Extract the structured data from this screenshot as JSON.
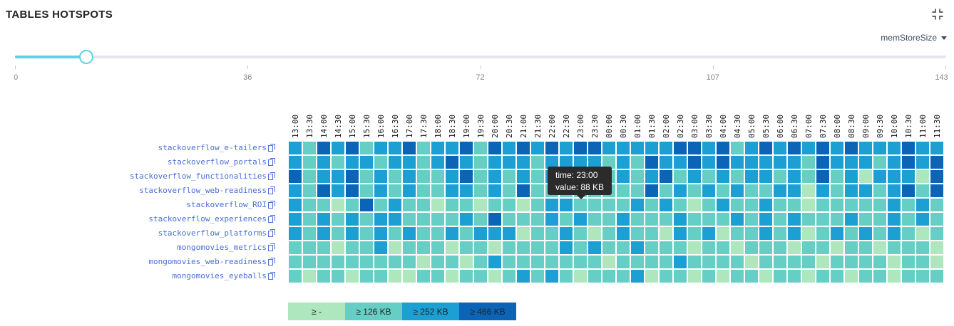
{
  "header": {
    "title": "TABLES HOTSPOTS",
    "collapse_icon": "collapse-icon"
  },
  "metric_select": {
    "value": "memStoreSize"
  },
  "slider": {
    "min": 0,
    "max": 143,
    "value": 11,
    "labels": [
      "0",
      "36",
      "72",
      "107",
      "143"
    ],
    "accent_color": "#5cd3e0"
  },
  "heatmap": {
    "time_labels": [
      "13:00",
      "13:30",
      "14:00",
      "14:30",
      "15:00",
      "15:30",
      "16:00",
      "16:30",
      "17:00",
      "17:30",
      "18:00",
      "18:30",
      "19:00",
      "19:30",
      "20:00",
      "20:30",
      "21:00",
      "21:30",
      "22:00",
      "22:30",
      "23:00",
      "23:30",
      "00:00",
      "00:30",
      "01:00",
      "01:30",
      "02:00",
      "02:30",
      "03:00",
      "03:30",
      "04:00",
      "04:30",
      "05:00",
      "05:30",
      "06:00",
      "06:30",
      "07:00",
      "07:30",
      "08:00",
      "08:30",
      "09:00",
      "09:30",
      "10:00",
      "10:30",
      "11:00",
      "11:30"
    ],
    "table_names": [
      "stackoverflow_e-tailers",
      "stackoverflow_portals",
      "stackoverflow_functionalities",
      "stackoverflow_web-readiness",
      "stackoverflow_ROI",
      "stackoverflow_experiences",
      "stackoverflow_platforms",
      "mongomovies_metrics",
      "mongomovies_web-readiness",
      "mongomovies_eyeballs"
    ],
    "level_colors": [
      "#aee6bd",
      "#66cfc5",
      "#1ca0d4",
      "#0b64b6"
    ],
    "levels": [
      [
        2,
        1,
        3,
        2,
        3,
        1,
        2,
        2,
        3,
        1,
        2,
        2,
        3,
        1,
        3,
        2,
        3,
        2,
        3,
        2,
        3,
        3,
        2,
        2,
        2,
        2,
        2,
        3,
        3,
        2,
        3,
        1,
        2,
        3,
        2,
        3,
        2,
        3,
        2,
        3,
        2,
        2,
        2,
        3,
        2,
        2
      ],
      [
        2,
        1,
        2,
        1,
        2,
        2,
        1,
        2,
        2,
        1,
        2,
        3,
        2,
        1,
        2,
        2,
        2,
        1,
        2,
        2,
        2,
        2,
        1,
        2,
        1,
        3,
        2,
        2,
        3,
        2,
        3,
        2,
        2,
        2,
        2,
        2,
        1,
        3,
        2,
        2,
        2,
        1,
        2,
        3,
        2,
        3
      ],
      [
        3,
        1,
        2,
        2,
        3,
        1,
        2,
        1,
        2,
        1,
        1,
        2,
        3,
        1,
        2,
        1,
        2,
        1,
        2,
        2,
        2,
        2,
        1,
        2,
        1,
        2,
        3,
        1,
        2,
        1,
        2,
        1,
        2,
        2,
        1,
        2,
        1,
        3,
        1,
        2,
        0,
        2,
        2,
        2,
        0,
        3
      ],
      [
        2,
        1,
        3,
        2,
        3,
        1,
        2,
        1,
        2,
        1,
        1,
        2,
        2,
        1,
        2,
        1,
        3,
        1,
        1,
        1,
        1,
        1,
        1,
        1,
        1,
        3,
        1,
        2,
        1,
        2,
        1,
        2,
        1,
        1,
        2,
        2,
        0,
        2,
        1,
        2,
        2,
        1,
        2,
        3,
        1,
        3
      ],
      [
        2,
        1,
        1,
        0,
        1,
        3,
        1,
        2,
        1,
        1,
        0,
        1,
        1,
        0,
        1,
        1,
        0,
        1,
        2,
        2,
        1,
        1,
        1,
        1,
        2,
        1,
        2,
        1,
        0,
        1,
        2,
        1,
        1,
        2,
        1,
        1,
        0,
        1,
        1,
        1,
        1,
        1,
        2,
        1,
        2,
        1
      ],
      [
        2,
        1,
        2,
        1,
        2,
        1,
        2,
        2,
        1,
        1,
        1,
        1,
        2,
        1,
        3,
        1,
        1,
        1,
        2,
        1,
        2,
        1,
        1,
        2,
        1,
        1,
        1,
        2,
        1,
        1,
        1,
        2,
        1,
        2,
        1,
        2,
        1,
        1,
        1,
        2,
        1,
        1,
        2,
        1,
        2,
        1
      ],
      [
        2,
        1,
        2,
        1,
        2,
        1,
        2,
        1,
        2,
        1,
        1,
        2,
        1,
        2,
        2,
        2,
        0,
        1,
        1,
        2,
        1,
        0,
        1,
        2,
        1,
        1,
        0,
        2,
        1,
        2,
        0,
        1,
        1,
        2,
        1,
        2,
        0,
        1,
        2,
        1,
        2,
        1,
        2,
        1,
        0,
        1
      ],
      [
        1,
        1,
        1,
        0,
        1,
        1,
        2,
        0,
        1,
        1,
        1,
        0,
        1,
        1,
        0,
        1,
        1,
        1,
        1,
        2,
        1,
        2,
        1,
        1,
        2,
        1,
        1,
        1,
        0,
        1,
        1,
        0,
        1,
        1,
        1,
        0,
        1,
        1,
        0,
        1,
        1,
        0,
        1,
        1,
        1,
        0
      ],
      [
        1,
        1,
        1,
        1,
        1,
        1,
        1,
        1,
        1,
        0,
        1,
        1,
        0,
        1,
        2,
        1,
        1,
        1,
        1,
        1,
        1,
        1,
        0,
        1,
        1,
        1,
        1,
        2,
        1,
        1,
        1,
        1,
        0,
        1,
        1,
        1,
        1,
        0,
        1,
        1,
        1,
        1,
        0,
        1,
        1,
        0
      ],
      [
        1,
        0,
        1,
        1,
        0,
        1,
        1,
        0,
        0,
        1,
        1,
        0,
        1,
        1,
        0,
        1,
        2,
        1,
        2,
        1,
        0,
        1,
        1,
        1,
        2,
        0,
        1,
        1,
        0,
        1,
        0,
        1,
        1,
        0,
        1,
        1,
        0,
        1,
        1,
        0,
        1,
        1,
        0,
        1,
        1,
        1
      ]
    ],
    "tooltip": {
      "time": "time: 23:00",
      "value": "value: 88 KB"
    }
  },
  "legend": {
    "items": [
      {
        "label": "≥ -",
        "color": "#aee6bd"
      },
      {
        "label": "≥ 126 KB",
        "color": "#66cfc5"
      },
      {
        "label": "≥ 252 KB",
        "color": "#1ca0d4"
      },
      {
        "label": "≥ 466 KB",
        "color": "#0b64b6"
      }
    ]
  }
}
